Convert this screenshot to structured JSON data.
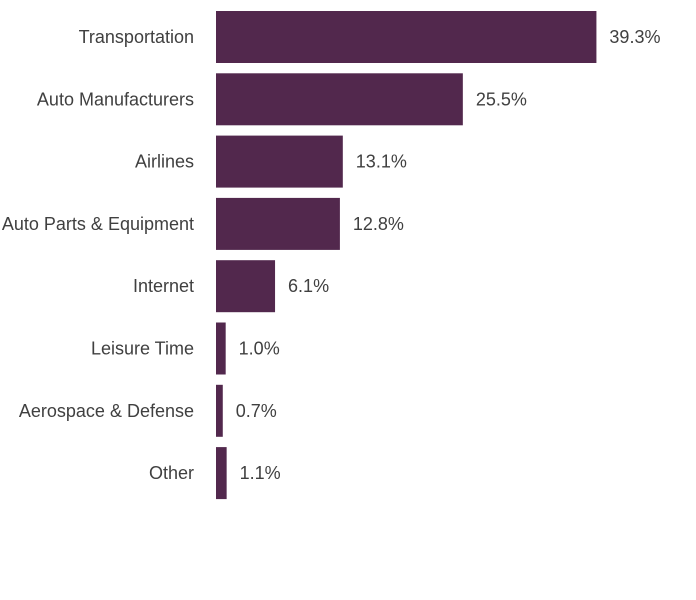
{
  "chart_data": {
    "type": "bar",
    "orientation": "horizontal",
    "categories": [
      "Transportation",
      "Auto Manufacturers",
      "Airlines",
      "Auto Parts & Equipment",
      "Internet",
      "Leisure Time",
      "Aerospace & Defense",
      "Other"
    ],
    "values": [
      39.3,
      25.5,
      13.1,
      12.8,
      6.1,
      1.0,
      0.7,
      1.1
    ],
    "value_labels": [
      "39.3%",
      "25.5%",
      "13.1%",
      "12.8%",
      "6.1%",
      "1.0%",
      "0.7%",
      "1.1%"
    ],
    "value_unit": "%",
    "bar_color": "#52284d",
    "grid": false,
    "legend": "none"
  }
}
